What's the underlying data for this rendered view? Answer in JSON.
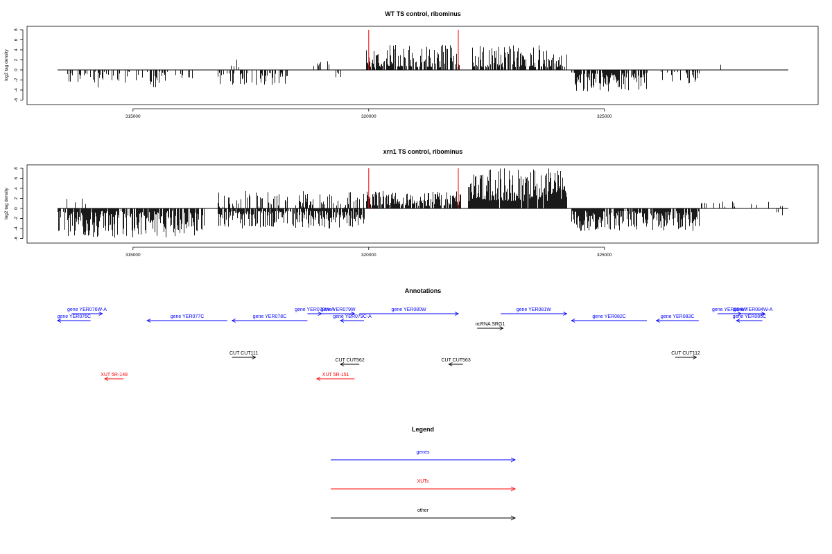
{
  "chart_data": [
    {
      "type": "bar",
      "title": "WT TS control, ribominus",
      "xlabel": "",
      "ylabel": "log2 tag density",
      "xlim": [
        313400,
        328900
      ],
      "ylim": [
        -6,
        8
      ],
      "yticks": [
        8,
        6,
        4,
        2,
        0,
        -2,
        -4,
        -6
      ],
      "xticks": [
        315000,
        320000,
        325000
      ],
      "grid": false,
      "markers": [
        320000,
        321900
      ],
      "marker_color": "#ff0000",
      "bar_color": "#000000",
      "segments": [
        {
          "range": [
            313600,
            315700
          ],
          "sign": -1,
          "min": 0.3,
          "max": 3.5,
          "density": 0.35,
          "seed": 11
        },
        {
          "range": [
            315700,
            316300
          ],
          "sign": -1,
          "min": 0.3,
          "max": 2.0,
          "density": 0.2,
          "seed": 12
        },
        {
          "range": [
            316800,
            318300
          ],
          "sign": -1,
          "min": 0.5,
          "max": 3.0,
          "density": 0.4,
          "seed": 13
        },
        {
          "range": [
            317000,
            317600
          ],
          "sign": 1,
          "min": 0.3,
          "max": 2.5,
          "density": 0.15,
          "seed": 14
        },
        {
          "range": [
            318800,
            319300
          ],
          "sign": 1,
          "min": 0.5,
          "max": 3.0,
          "density": 0.2,
          "seed": 15
        },
        {
          "range": [
            319300,
            319400
          ],
          "sign": -1,
          "min": 0.5,
          "max": 2.0,
          "density": 0.3,
          "seed": 16
        },
        {
          "range": [
            319950,
            321950
          ],
          "sign": 1,
          "min": 0.5,
          "max": 5.0,
          "density": 0.75,
          "seed": 17
        },
        {
          "range": [
            322200,
            324200
          ],
          "sign": 1,
          "min": 0.5,
          "max": 5.0,
          "density": 0.7,
          "seed": 18
        },
        {
          "range": [
            324300,
            325900
          ],
          "sign": -1,
          "min": 0.5,
          "max": 4.3,
          "density": 0.75,
          "seed": 19
        },
        {
          "range": [
            326200,
            327000
          ],
          "sign": -1,
          "min": 0.3,
          "max": 3.0,
          "density": 0.45,
          "seed": 20
        },
        {
          "range": [
            326200,
            326300
          ],
          "sign": 1,
          "min": 1.5,
          "max": 2.5,
          "density": 0.1,
          "seed": 21
        },
        {
          "range": [
            327400,
            327500
          ],
          "sign": 1,
          "min": 1.0,
          "max": 1.5,
          "density": 0.05,
          "seed": 22
        }
      ]
    },
    {
      "type": "bar",
      "title": "xrn1 TS control, ribominus",
      "xlabel": "",
      "ylabel": "log2 tag density",
      "xlim": [
        313400,
        328900
      ],
      "ylim": [
        -6,
        8
      ],
      "yticks": [
        8,
        6,
        4,
        2,
        0,
        -2,
        -4,
        -6
      ],
      "xticks": [
        315000,
        320000,
        325000
      ],
      "grid": false,
      "markers": [
        320000,
        321900
      ],
      "marker_color": "#ff0000",
      "bar_color": "#000000",
      "segments": [
        {
          "range": [
            313400,
            316500
          ],
          "sign": -1,
          "min": 0.5,
          "max": 5.8,
          "density": 0.85,
          "seed": 31
        },
        {
          "range": [
            313500,
            314000
          ],
          "sign": 1,
          "min": 0.3,
          "max": 2.0,
          "density": 0.15,
          "seed": 32
        },
        {
          "range": [
            316800,
            319900
          ],
          "sign": -1,
          "min": 0.5,
          "max": 4.0,
          "density": 0.8,
          "seed": 33
        },
        {
          "range": [
            316800,
            319900
          ],
          "sign": 1,
          "min": 0.3,
          "max": 3.5,
          "density": 0.35,
          "seed": 34
        },
        {
          "range": [
            319950,
            321950
          ],
          "sign": 1,
          "min": 0.5,
          "max": 3.5,
          "density": 0.85,
          "seed": 35
        },
        {
          "range": [
            322100,
            324200
          ],
          "sign": 1,
          "min": 1.5,
          "max": 8.0,
          "density": 0.95,
          "seed": 36
        },
        {
          "range": [
            324300,
            327000
          ],
          "sign": -1,
          "min": 0.5,
          "max": 4.5,
          "density": 0.85,
          "seed": 37
        },
        {
          "range": [
            327000,
            328800
          ],
          "sign": 1,
          "min": 0.3,
          "max": 1.5,
          "density": 0.1,
          "seed": 38
        },
        {
          "range": [
            328600,
            328800
          ],
          "sign": -1,
          "min": 0.5,
          "max": 1.5,
          "density": 0.2,
          "seed": 39
        }
      ]
    }
  ],
  "annotations": {
    "title": "Annotations",
    "color_gene": "#0000ff",
    "color_xut": "#ff0000",
    "color_other": "#000000",
    "features": [
      {
        "label": "gene YER076W-A",
        "kind": "gene",
        "start": 313700,
        "end": 314350,
        "dir": "right",
        "lane": 1
      },
      {
        "label": "gene YER076C",
        "kind": "gene",
        "start": 313400,
        "end": 314100,
        "dir": "left",
        "lane": 2
      },
      {
        "label": "gene YER077C",
        "kind": "gene",
        "start": 315300,
        "end": 317000,
        "dir": "left",
        "lane": 2
      },
      {
        "label": "gene YER078C",
        "kind": "gene",
        "start": 317100,
        "end": 318700,
        "dir": "left",
        "lane": 2
      },
      {
        "label": "gene YER078W-A",
        "kind": "gene",
        "start": 318700,
        "end": 319000,
        "dir": "right",
        "lane": 1
      },
      {
        "label": "gene YER079W",
        "kind": "gene",
        "start": 319000,
        "end": 319700,
        "dir": "right",
        "lane": 1
      },
      {
        "label": "gene YER079C-A",
        "kind": "gene",
        "start": 319400,
        "end": 319900,
        "dir": "left",
        "lane": 2
      },
      {
        "label": "gene YER080W",
        "kind": "gene",
        "start": 319800,
        "end": 321900,
        "dir": "right",
        "lane": 1
      },
      {
        "label": "gene YER081W",
        "kind": "gene",
        "start": 322800,
        "end": 324200,
        "dir": "right",
        "lane": 1
      },
      {
        "label": "gene YER082C",
        "kind": "gene",
        "start": 324300,
        "end": 325900,
        "dir": "left",
        "lane": 2
      },
      {
        "label": "gene YER083C",
        "kind": "gene",
        "start": 326100,
        "end": 327000,
        "dir": "left",
        "lane": 2
      },
      {
        "label": "gene YER084W",
        "kind": "gene",
        "start": 327400,
        "end": 327900,
        "dir": "right",
        "lane": 1
      },
      {
        "label": "gene YER084W-A",
        "kind": "gene",
        "start": 327900,
        "end": 328400,
        "dir": "right",
        "lane": 1
      },
      {
        "label": "gene YER085C",
        "kind": "gene",
        "start": 327800,
        "end": 328350,
        "dir": "left",
        "lane": 2
      },
      {
        "label": "ncRNA SRG1",
        "kind": "other",
        "start": 322300,
        "end": 322850,
        "dir": "right",
        "lane": 3
      },
      {
        "label": "CUT CUT111",
        "kind": "other",
        "start": 317100,
        "end": 317600,
        "dir": "right",
        "lane": 4
      },
      {
        "label": "CUT CUT562",
        "kind": "other",
        "start": 319400,
        "end": 319800,
        "dir": "left",
        "lane": 5
      },
      {
        "label": "CUT CUT563",
        "kind": "other",
        "start": 321700,
        "end": 322000,
        "dir": "left",
        "lane": 5
      },
      {
        "label": "CUT CUT112",
        "kind": "other",
        "start": 326500,
        "end": 326950,
        "dir": "right",
        "lane": 4
      },
      {
        "label": "XUT 5R-148",
        "kind": "xut",
        "start": 314400,
        "end": 314800,
        "dir": "left",
        "lane": 6
      },
      {
        "label": "XUT 5R-151",
        "kind": "xut",
        "start": 318900,
        "end": 319700,
        "dir": "left",
        "lane": 6
      }
    ]
  },
  "legend": {
    "title": "Legend",
    "items": [
      {
        "label": "genes",
        "color": "#0000ff"
      },
      {
        "label": "XUTs",
        "color": "#ff0000"
      },
      {
        "label": "other",
        "color": "#000000"
      }
    ]
  }
}
